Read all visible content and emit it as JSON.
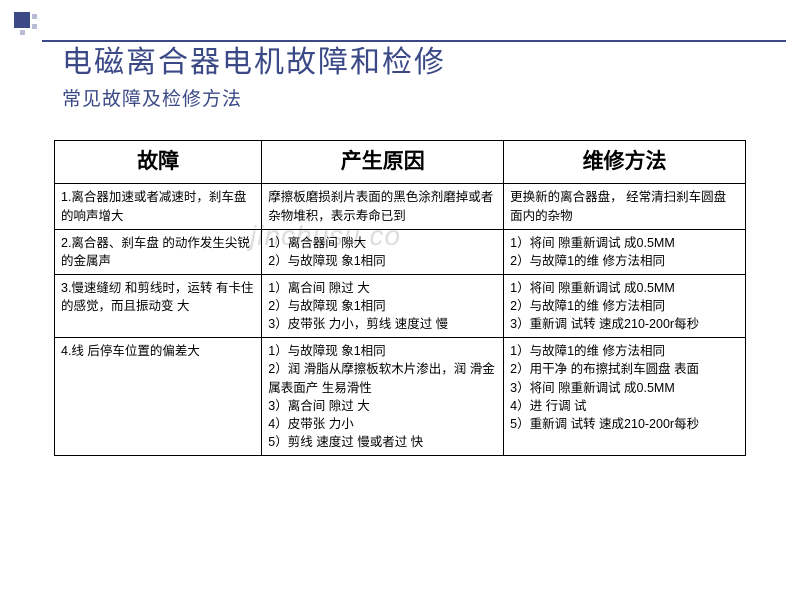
{
  "title": {
    "main": "电磁离合器电机故障和检修",
    "sub": "常见故障及检修方法"
  },
  "watermark": "jinchusu.co",
  "table": {
    "headers": [
      "故障",
      "产生原因",
      "维修方法"
    ],
    "rows": [
      {
        "fault": "1.离合器加速或者减速时，刹车盘 的响声增大",
        "cause": "摩擦板磨损刹片表面的黑色涂剂磨掉或者杂物堆积，表示寿命已到",
        "fix": "更换新的离合器盘，  经常清扫刹车圆盘 面内的杂物"
      },
      {
        "fault": "2.离合器、刹车盘 的动作发生尖锐的金属声",
        "cause": "1）离合器间 隙大\n2）与故障现 象1相同",
        "fix": "1）将间 隙重新调试 成0.5MM\n2）与故障1的维 修方法相同"
      },
      {
        "fault": "3.慢速缝纫 和剪线时，运转 有卡住的感觉，而且振动变   大",
        "cause": "1）离合间 隙过 大\n2）与故障现 象1相同\n3）皮带张 力小，剪线 速度过 慢",
        "fix": "1）将间 隙重新调试 成0.5MM\n2）与故障1的维 修方法相同\n3）重新调 试转   速成210-200r每秒"
      },
      {
        "fault": "4.线 后停车位置的偏差大",
        "cause": "1）与故障现 象1相同\n2）润 滑脂从摩擦板软木片渗出，润 滑金属表面产 生易滑性\n3）离合间 隙过 大\n4）皮带张 力小\n5）剪线 速度过 慢或者过 快",
        "fix": "1）与故障1的维 修方法相同\n2）用干净 的布擦拭刹车圆盘 表面\n3）将间 隙重新调试 成0.5MM\n4）进 行调 试\n5）重新调 试转   速成210-200r每秒"
      }
    ]
  },
  "colors": {
    "accent": "#3b4a87",
    "deco_light": "#b8bcd4",
    "border": "#000000",
    "bg": "#ffffff"
  }
}
